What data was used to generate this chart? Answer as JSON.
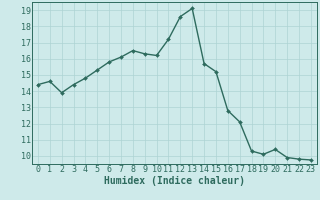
{
  "x": [
    0,
    1,
    2,
    3,
    4,
    5,
    6,
    7,
    8,
    9,
    10,
    11,
    12,
    13,
    14,
    15,
    16,
    17,
    18,
    19,
    20,
    21,
    22,
    23
  ],
  "y": [
    14.4,
    14.6,
    13.9,
    14.4,
    14.8,
    15.3,
    15.8,
    16.1,
    16.5,
    16.3,
    16.2,
    17.2,
    18.6,
    19.1,
    15.7,
    15.2,
    12.8,
    12.1,
    10.3,
    10.1,
    10.4,
    9.9,
    9.8,
    9.75
  ],
  "line_color": "#2e6b5e",
  "marker": "D",
  "marker_size": 2.0,
  "line_width": 1.0,
  "bg_color": "#ceeaea",
  "grid_color": "#aed4d4",
  "tick_color": "#2e6b5e",
  "xlabel": "Humidex (Indice chaleur)",
  "xlabel_fontsize": 7,
  "xlabel_color": "#2e6b5e",
  "tick_fontsize": 6.0,
  "ylim": [
    9.5,
    19.5
  ],
  "yticks": [
    10,
    11,
    12,
    13,
    14,
    15,
    16,
    17,
    18,
    19
  ],
  "xticks": [
    0,
    1,
    2,
    3,
    4,
    5,
    6,
    7,
    8,
    9,
    10,
    11,
    12,
    13,
    14,
    15,
    16,
    17,
    18,
    19,
    20,
    21,
    22,
    23
  ],
  "xlim": [
    -0.5,
    23.5
  ]
}
